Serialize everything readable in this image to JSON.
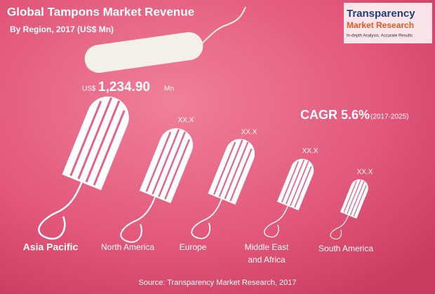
{
  "header": {
    "title": "Global Tampons Market Revenue",
    "subtitle": "By Region, 2017 (US$ Mn)"
  },
  "logo": {
    "line1": "Transparency",
    "line2": "Market Research",
    "tagline": "In-depth Analysis. Accurate Results"
  },
  "highlight": {
    "prefix": "US$",
    "value": "1,234.90",
    "unit": "Mn"
  },
  "cagr": {
    "label": "CAGR 5.6%",
    "period": "(2017-2025)"
  },
  "regions": [
    {
      "name": "Asia Pacific"
    },
    {
      "name": "North America",
      "value": "XX.X"
    },
    {
      "name": "Europe",
      "value": "XX.X"
    },
    {
      "name": "Middle East and Africa",
      "value": "XX.X"
    },
    {
      "name": "South America",
      "value": "XX.X"
    }
  ],
  "source": "Source: Transparency Market Research, 2017"
}
